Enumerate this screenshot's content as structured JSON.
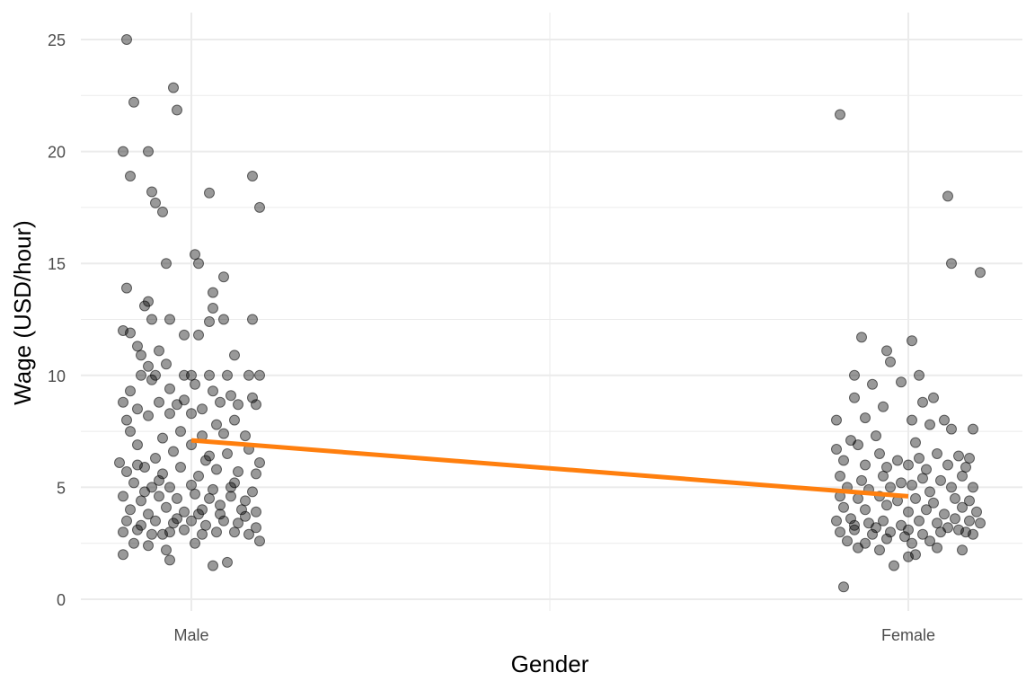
{
  "chart_data": {
    "type": "scatter",
    "title": "",
    "xlabel": "Gender",
    "ylabel": "Wage (USD/hour)",
    "categories": [
      "Male",
      "Female"
    ],
    "ylim": [
      -0.5,
      25.5
    ],
    "yticks": [
      0,
      5,
      10,
      15,
      20,
      25
    ],
    "grid": true,
    "legend": "none",
    "colors": {
      "points": "#000000",
      "line": "#ff7f0e",
      "grid": "#ebebeb"
    },
    "series": [
      {
        "category": "Male",
        "points": [
          [
            -0.18,
            25.0
          ],
          [
            -0.05,
            22.85
          ],
          [
            -0.16,
            22.2
          ],
          [
            -0.04,
            21.85
          ],
          [
            -0.19,
            20.0
          ],
          [
            -0.12,
            20.0
          ],
          [
            -0.17,
            18.9
          ],
          [
            -0.11,
            18.2
          ],
          [
            0.05,
            18.15
          ],
          [
            0.17,
            18.9
          ],
          [
            -0.1,
            17.7
          ],
          [
            -0.08,
            17.3
          ],
          [
            0.19,
            17.5
          ],
          [
            -0.07,
            15.0
          ],
          [
            0.01,
            15.4
          ],
          [
            0.02,
            15.0
          ],
          [
            0.09,
            14.4
          ],
          [
            -0.18,
            13.9
          ],
          [
            0.06,
            13.7
          ],
          [
            -0.13,
            13.1
          ],
          [
            -0.12,
            13.3
          ],
          [
            0.06,
            13.0
          ],
          [
            -0.11,
            12.5
          ],
          [
            -0.06,
            12.5
          ],
          [
            0.05,
            12.4
          ],
          [
            0.09,
            12.5
          ],
          [
            0.17,
            12.5
          ],
          [
            -0.19,
            12.0
          ],
          [
            -0.17,
            11.9
          ],
          [
            -0.02,
            11.8
          ],
          [
            0.02,
            11.8
          ],
          [
            -0.15,
            11.3
          ],
          [
            -0.09,
            11.1
          ],
          [
            0.12,
            10.9
          ],
          [
            -0.14,
            10.9
          ],
          [
            -0.12,
            10.4
          ],
          [
            -0.07,
            10.5
          ],
          [
            -0.14,
            10.0
          ],
          [
            -0.1,
            10.0
          ],
          [
            -0.02,
            10.0
          ],
          [
            0.0,
            10.0
          ],
          [
            0.05,
            10.0
          ],
          [
            0.1,
            10.0
          ],
          [
            0.16,
            10.0
          ],
          [
            0.19,
            10.0
          ],
          [
            -0.17,
            9.3
          ],
          [
            -0.11,
            9.8
          ],
          [
            -0.06,
            9.4
          ],
          [
            0.01,
            9.6
          ],
          [
            0.06,
            9.3
          ],
          [
            0.11,
            9.1
          ],
          [
            0.17,
            9.0
          ],
          [
            -0.19,
            8.8
          ],
          [
            -0.15,
            8.5
          ],
          [
            -0.09,
            8.8
          ],
          [
            -0.04,
            8.7
          ],
          [
            -0.02,
            8.9
          ],
          [
            0.03,
            8.5
          ],
          [
            0.08,
            8.8
          ],
          [
            0.13,
            8.7
          ],
          [
            0.18,
            8.7
          ],
          [
            -0.18,
            8.0
          ],
          [
            -0.12,
            8.2
          ],
          [
            -0.06,
            8.3
          ],
          [
            0.0,
            8.3
          ],
          [
            0.07,
            7.8
          ],
          [
            0.12,
            8.0
          ],
          [
            -0.17,
            7.5
          ],
          [
            -0.08,
            7.2
          ],
          [
            -0.03,
            7.5
          ],
          [
            0.03,
            7.3
          ],
          [
            0.09,
            7.4
          ],
          [
            0.15,
            7.3
          ],
          [
            -0.2,
            6.1
          ],
          [
            -0.15,
            6.9
          ],
          [
            -0.1,
            6.3
          ],
          [
            -0.05,
            6.6
          ],
          [
            0.0,
            6.9
          ],
          [
            0.05,
            6.4
          ],
          [
            0.1,
            6.5
          ],
          [
            0.16,
            6.7
          ],
          [
            0.19,
            6.1
          ],
          [
            -0.18,
            5.7
          ],
          [
            -0.13,
            5.9
          ],
          [
            -0.08,
            5.6
          ],
          [
            -0.03,
            5.9
          ],
          [
            0.02,
            5.5
          ],
          [
            0.07,
            5.8
          ],
          [
            0.13,
            5.7
          ],
          [
            0.18,
            5.6
          ],
          [
            -0.16,
            5.2
          ],
          [
            -0.11,
            5.0
          ],
          [
            -0.06,
            5.0
          ],
          [
            0.0,
            5.1
          ],
          [
            0.06,
            4.9
          ],
          [
            0.11,
            5.0
          ],
          [
            0.17,
            4.8
          ],
          [
            -0.19,
            4.6
          ],
          [
            -0.14,
            4.4
          ],
          [
            -0.09,
            4.6
          ],
          [
            -0.04,
            4.5
          ],
          [
            0.01,
            4.7
          ],
          [
            0.05,
            4.5
          ],
          [
            0.11,
            4.6
          ],
          [
            0.15,
            4.4
          ],
          [
            -0.17,
            4.0
          ],
          [
            -0.12,
            3.8
          ],
          [
            -0.07,
            4.1
          ],
          [
            -0.02,
            3.9
          ],
          [
            0.03,
            4.0
          ],
          [
            0.08,
            3.8
          ],
          [
            0.14,
            4.0
          ],
          [
            0.18,
            3.9
          ],
          [
            -0.18,
            3.5
          ],
          [
            -0.14,
            3.3
          ],
          [
            -0.1,
            3.5
          ],
          [
            -0.05,
            3.4
          ],
          [
            0.0,
            3.5
          ],
          [
            0.04,
            3.3
          ],
          [
            0.09,
            3.5
          ],
          [
            0.13,
            3.4
          ],
          [
            0.18,
            3.2
          ],
          [
            -0.19,
            3.0
          ],
          [
            -0.15,
            3.1
          ],
          [
            -0.11,
            2.9
          ],
          [
            -0.06,
            3.0
          ],
          [
            -0.02,
            3.1
          ],
          [
            0.03,
            2.9
          ],
          [
            0.07,
            3.0
          ],
          [
            0.12,
            3.0
          ],
          [
            0.16,
            2.9
          ],
          [
            0.19,
            2.6
          ],
          [
            -0.16,
            2.5
          ],
          [
            -0.12,
            2.4
          ],
          [
            -0.07,
            2.2
          ],
          [
            0.01,
            2.5
          ],
          [
            -0.19,
            2.0
          ],
          [
            -0.06,
            1.75
          ],
          [
            0.06,
            1.5
          ],
          [
            0.1,
            1.65
          ],
          [
            -0.15,
            6.0
          ],
          [
            -0.09,
            5.3
          ],
          [
            0.04,
            6.2
          ],
          [
            0.12,
            5.2
          ],
          [
            -0.13,
            4.8
          ],
          [
            0.08,
            4.2
          ],
          [
            -0.04,
            3.6
          ],
          [
            0.15,
            3.7
          ],
          [
            -0.08,
            2.9
          ],
          [
            0.02,
            3.8
          ]
        ]
      },
      {
        "category": "Female",
        "points": [
          [
            -0.19,
            21.65
          ],
          [
            0.11,
            18.0
          ],
          [
            0.12,
            15.0
          ],
          [
            0.2,
            14.6
          ],
          [
            -0.13,
            11.7
          ],
          [
            -0.06,
            11.1
          ],
          [
            0.01,
            11.55
          ],
          [
            -0.05,
            10.6
          ],
          [
            -0.15,
            10.0
          ],
          [
            0.03,
            10.0
          ],
          [
            -0.1,
            9.6
          ],
          [
            -0.02,
            9.7
          ],
          [
            0.07,
            9.0
          ],
          [
            -0.15,
            9.0
          ],
          [
            -0.07,
            8.6
          ],
          [
            0.04,
            8.8
          ],
          [
            -0.2,
            8.0
          ],
          [
            -0.12,
            8.1
          ],
          [
            0.01,
            8.0
          ],
          [
            0.06,
            7.8
          ],
          [
            0.1,
            8.0
          ],
          [
            0.12,
            7.6
          ],
          [
            0.18,
            7.6
          ],
          [
            -0.16,
            7.1
          ],
          [
            -0.09,
            7.3
          ],
          [
            0.02,
            7.0
          ],
          [
            -0.2,
            6.7
          ],
          [
            -0.14,
            6.9
          ],
          [
            -0.08,
            6.5
          ],
          [
            -0.03,
            6.2
          ],
          [
            0.03,
            6.3
          ],
          [
            0.08,
            6.5
          ],
          [
            0.14,
            6.4
          ],
          [
            0.17,
            6.3
          ],
          [
            -0.18,
            6.2
          ],
          [
            -0.12,
            6.0
          ],
          [
            -0.06,
            5.9
          ],
          [
            0.0,
            6.0
          ],
          [
            0.05,
            5.8
          ],
          [
            0.11,
            6.0
          ],
          [
            0.16,
            5.9
          ],
          [
            -0.19,
            5.5
          ],
          [
            -0.13,
            5.3
          ],
          [
            -0.07,
            5.5
          ],
          [
            -0.02,
            5.2
          ],
          [
            0.04,
            5.4
          ],
          [
            0.09,
            5.3
          ],
          [
            0.15,
            5.5
          ],
          [
            -0.17,
            5.0
          ],
          [
            -0.11,
            4.9
          ],
          [
            -0.05,
            5.0
          ],
          [
            0.01,
            5.1
          ],
          [
            0.06,
            4.8
          ],
          [
            0.12,
            5.0
          ],
          [
            0.18,
            5.0
          ],
          [
            -0.19,
            4.6
          ],
          [
            -0.14,
            4.5
          ],
          [
            -0.08,
            4.6
          ],
          [
            -0.03,
            4.4
          ],
          [
            0.02,
            4.5
          ],
          [
            0.07,
            4.3
          ],
          [
            0.13,
            4.5
          ],
          [
            0.17,
            4.4
          ],
          [
            -0.18,
            4.1
          ],
          [
            -0.12,
            4.0
          ],
          [
            -0.06,
            4.2
          ],
          [
            0.0,
            3.9
          ],
          [
            0.05,
            4.0
          ],
          [
            0.1,
            3.8
          ],
          [
            0.15,
            4.1
          ],
          [
            0.19,
            3.9
          ],
          [
            -0.2,
            3.5
          ],
          [
            -0.16,
            3.6
          ],
          [
            -0.11,
            3.4
          ],
          [
            -0.07,
            3.5
          ],
          [
            -0.02,
            3.3
          ],
          [
            0.03,
            3.5
          ],
          [
            0.08,
            3.4
          ],
          [
            0.13,
            3.6
          ],
          [
            0.17,
            3.5
          ],
          [
            0.2,
            3.4
          ],
          [
            -0.19,
            3.0
          ],
          [
            -0.15,
            3.1
          ],
          [
            -0.1,
            2.9
          ],
          [
            -0.05,
            3.0
          ],
          [
            0.0,
            3.1
          ],
          [
            0.04,
            2.9
          ],
          [
            0.09,
            3.0
          ],
          [
            0.14,
            3.1
          ],
          [
            0.18,
            2.9
          ],
          [
            -0.17,
            2.6
          ],
          [
            -0.12,
            2.5
          ],
          [
            -0.06,
            2.7
          ],
          [
            0.01,
            2.5
          ],
          [
            0.06,
            2.6
          ],
          [
            -0.14,
            2.3
          ],
          [
            -0.08,
            2.2
          ],
          [
            0.02,
            2.0
          ],
          [
            0.08,
            2.3
          ],
          [
            0.15,
            2.2
          ],
          [
            -0.04,
            1.5
          ],
          [
            0.0,
            1.9
          ],
          [
            -0.18,
            0.55
          ],
          [
            -0.15,
            3.3
          ],
          [
            -0.09,
            3.2
          ],
          [
            0.11,
            3.2
          ],
          [
            0.16,
            3.0
          ],
          [
            -0.01,
            2.8
          ]
        ]
      }
    ],
    "trend_line": {
      "x": [
        "Male",
        "Female"
      ],
      "y": [
        7.1,
        4.6
      ]
    }
  }
}
